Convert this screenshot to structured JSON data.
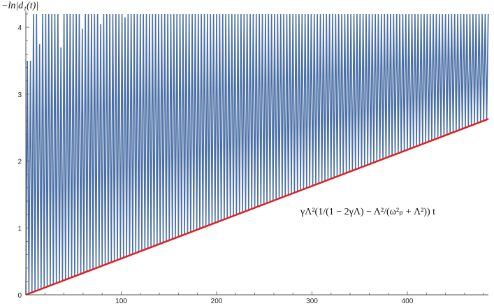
{
  "chart_data": {
    "type": "line",
    "title": "",
    "xlabel": "",
    "ylabel": "−ln|d₁(t)|",
    "xlim": [
      0,
      485
    ],
    "ylim": [
      0,
      4.2
    ],
    "x_ticks": [
      100,
      200,
      300,
      400
    ],
    "y_ticks": [
      0,
      1,
      2,
      3,
      4
    ],
    "grid": false,
    "legend": "none",
    "series": [
      {
        "style": "oscillating",
        "color": "#4a6fa5",
        "period": 3.2,
        "min_values": {
          "x": [
            0,
            485
          ],
          "y": [
            0,
            2.63
          ]
        },
        "max_value_clipped": 4.2,
        "early_peaks": [
          {
            "x": 3,
            "y": 3.5
          },
          {
            "x": 14,
            "y": 3.75
          },
          {
            "x": 37,
            "y": 3.7
          },
          {
            "x": 59,
            "y": 3.98
          },
          {
            "x": 79,
            "y": 4.05
          },
          {
            "x": 103,
            "y": 4.15
          }
        ]
      },
      {
        "style": "solid",
        "color": "#e02020",
        "x": [
          0,
          485
        ],
        "y": [
          0,
          2.63
        ]
      }
    ],
    "annotation": "γΛ²(1/(1 − 2γΛ) − Λ²/(ω²ₚ + Λ²)) t"
  }
}
